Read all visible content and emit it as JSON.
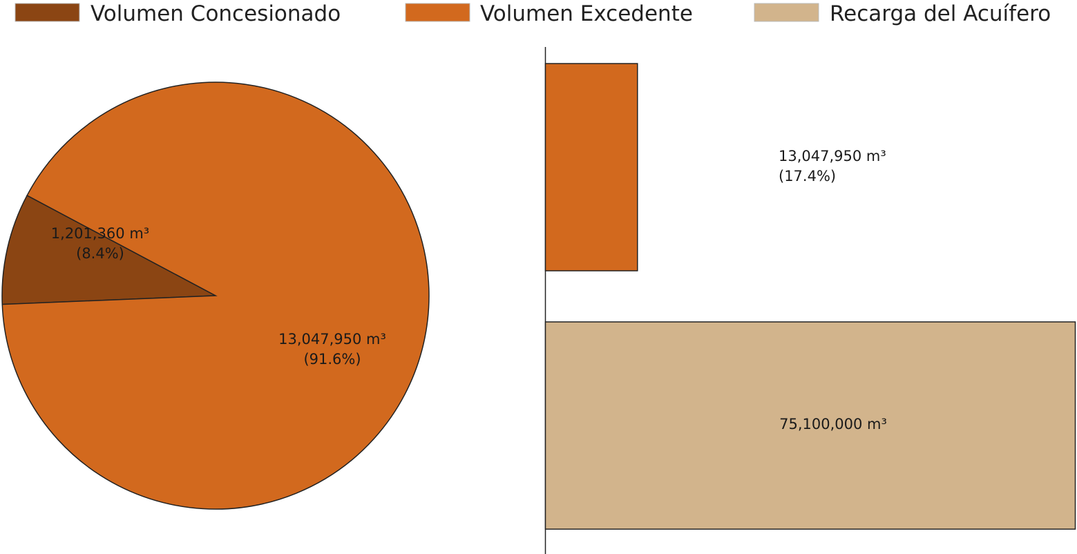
{
  "chart_data": [
    {
      "type": "pie",
      "slices": [
        {
          "name": "Volumen Concesionado",
          "value": 1201360,
          "value_label": "1,201,360 m³",
          "percent_label": "(8.4%)",
          "color": "#8B4513"
        },
        {
          "name": "Volumen Excedente",
          "value": 13047950,
          "value_label": "13,047,950 m³",
          "percent_label": "(91.6%)",
          "color": "#D2691E"
        }
      ]
    },
    {
      "type": "bar",
      "orientation": "horizontal",
      "bars": [
        {
          "name": "Volumen Excedente",
          "value": 13047950,
          "value_label": "13,047,950 m³",
          "percent_label": "(17.4%)",
          "color": "#D2691E"
        },
        {
          "name": "Recarga del Acuífero",
          "value": 75100000,
          "value_label": "75,100,000 m³",
          "percent_label": "",
          "color": "#D2B48C"
        }
      ],
      "xlim": [
        0,
        75100000
      ]
    }
  ],
  "legend": {
    "placement": "top",
    "items": [
      {
        "label": "Volumen Concesionado",
        "color": "#8B4513"
      },
      {
        "label": "Volumen Excedente",
        "color": "#D2691E"
      },
      {
        "label": "Recarga del Acuífero",
        "color": "#D2B48C"
      }
    ]
  }
}
